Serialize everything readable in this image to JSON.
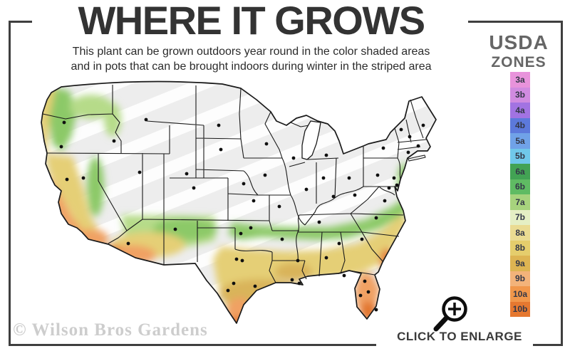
{
  "header": {
    "title": "WHERE IT GROWS",
    "subtitle_line1": "This plant can be grown outdoors year round in the color shaded areas",
    "subtitle_line2": "and in pots that can be brought indoors during winter in the striped area"
  },
  "legend": {
    "title_line1": "USDA",
    "title_line2": "ZONES",
    "zones": [
      {
        "label": "3a",
        "color": "#E893DB"
      },
      {
        "label": "3b",
        "color": "#D08BE0"
      },
      {
        "label": "4a",
        "color": "#A273E2"
      },
      {
        "label": "4b",
        "color": "#5C79DB"
      },
      {
        "label": "5a",
        "color": "#70A2E8"
      },
      {
        "label": "5b",
        "color": "#70C8EA"
      },
      {
        "label": "6a",
        "color": "#42A254"
      },
      {
        "label": "6b",
        "color": "#5FBB63"
      },
      {
        "label": "7a",
        "color": "#A7D37D"
      },
      {
        "label": "7b",
        "color": "#E5EFC4"
      },
      {
        "label": "8a",
        "color": "#EADB92"
      },
      {
        "label": "8b",
        "color": "#E5CD6C"
      },
      {
        "label": "9a",
        "color": "#DDB452"
      },
      {
        "label": "9b",
        "color": "#F3B37A"
      },
      {
        "label": "10a",
        "color": "#F1974B"
      },
      {
        "label": "10b",
        "color": "#E57830"
      }
    ]
  },
  "map": {
    "palette": {
      "base_gray": "#EDEDED",
      "stripe": "#FFFFFF",
      "green": "#8CC968",
      "light_green": "#B6DB89",
      "yellow": "#E5CF76",
      "gold": "#D9B45A",
      "orange": "#F0A163",
      "dark_orange": "#E5813C",
      "deep_orange": "#E2762E",
      "border": "#1A1A1A",
      "dot": "#101010"
    },
    "city_dots": [
      [
        70,
        62
      ],
      [
        66,
        96
      ],
      [
        140,
        88
      ],
      [
        185,
        58
      ],
      [
        287,
        66
      ],
      [
        290,
        100
      ],
      [
        242,
        134
      ],
      [
        97,
        140
      ],
      [
        176,
        132
      ],
      [
        74,
        142
      ],
      [
        252,
        154
      ],
      [
        160,
        232
      ],
      [
        226,
        212
      ],
      [
        322,
        148
      ],
      [
        336,
        172
      ],
      [
        318,
        218
      ],
      [
        332,
        210
      ],
      [
        312,
        254
      ],
      [
        320,
        256
      ],
      [
        308,
        288
      ],
      [
        300,
        298
      ],
      [
        338,
        292
      ],
      [
        354,
        92
      ],
      [
        352,
        136
      ],
      [
        372,
        180
      ],
      [
        376,
        226
      ],
      [
        390,
        283
      ],
      [
        400,
        288
      ],
      [
        392,
        112
      ],
      [
        410,
        156
      ],
      [
        434,
        140
      ],
      [
        438,
        108
      ],
      [
        470,
        140
      ],
      [
        448,
        166
      ],
      [
        428,
        202
      ],
      [
        398,
        256
      ],
      [
        438,
        252
      ],
      [
        456,
        232
      ],
      [
        488,
        226
      ],
      [
        508,
        196
      ],
      [
        520,
        172
      ],
      [
        478,
        164
      ],
      [
        463,
        277
      ],
      [
        492,
        285
      ],
      [
        486,
        305
      ],
      [
        497,
        300
      ],
      [
        508,
        325
      ],
      [
        510,
        136
      ],
      [
        518,
        98
      ],
      [
        574,
        66
      ],
      [
        543,
        72
      ],
      [
        555,
        82
      ],
      [
        567,
        95
      ],
      [
        553,
        104
      ],
      [
        533,
        140
      ],
      [
        526,
        154
      ],
      [
        537,
        150
      ]
    ]
  },
  "footer": {
    "watermark": "© Wilson Bros Gardens",
    "cta": "CLICK TO ENLARGE"
  },
  "icons": {
    "magnifier": "magnifier-plus-icon"
  }
}
